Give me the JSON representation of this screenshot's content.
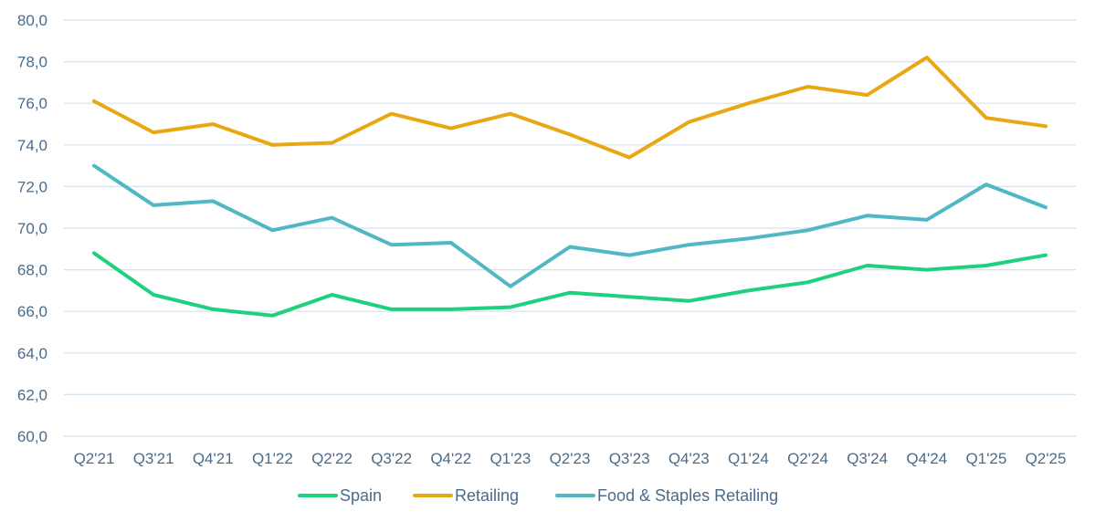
{
  "chart_data": {
    "type": "line",
    "title": "",
    "xlabel": "",
    "ylabel": "",
    "ylim": [
      60,
      80
    ],
    "y_ticks": [
      "60,0",
      "62,0",
      "64,0",
      "66,0",
      "68,0",
      "70,0",
      "72,0",
      "74,0",
      "76,0",
      "78,0",
      "80,0"
    ],
    "y_tick_values": [
      60,
      62,
      64,
      66,
      68,
      70,
      72,
      74,
      76,
      78,
      80
    ],
    "grid": true,
    "legend_position": "bottom",
    "categories": [
      "Q2'21",
      "Q3'21",
      "Q4'21",
      "Q1'22",
      "Q2'22",
      "Q3'22",
      "Q4'22",
      "Q1'23",
      "Q2'23",
      "Q3'23",
      "Q4'23",
      "Q1'24",
      "Q2'24",
      "Q3'24",
      "Q4'24",
      "Q1'25",
      "Q2'25"
    ],
    "series": [
      {
        "name": "Spain",
        "color": "#1ed17c",
        "values": [
          68.8,
          66.8,
          66.1,
          65.8,
          66.8,
          66.1,
          66.1,
          66.2,
          66.9,
          66.7,
          66.5,
          67.0,
          67.4,
          68.2,
          68.0,
          68.2,
          68.7
        ]
      },
      {
        "name": "Retailing",
        "color": "#e8a814",
        "values": [
          76.1,
          74.6,
          75.0,
          74.0,
          74.1,
          75.5,
          74.8,
          75.5,
          74.5,
          73.4,
          75.1,
          76.0,
          76.8,
          76.4,
          78.2,
          75.3,
          74.9
        ]
      },
      {
        "name": "Food & Staples Retailing",
        "color": "#4fb8c4",
        "values": [
          73.0,
          71.1,
          71.3,
          69.9,
          70.5,
          69.2,
          69.3,
          67.2,
          69.1,
          68.7,
          69.2,
          69.5,
          69.9,
          70.6,
          70.4,
          72.1,
          71.0
        ]
      }
    ]
  }
}
